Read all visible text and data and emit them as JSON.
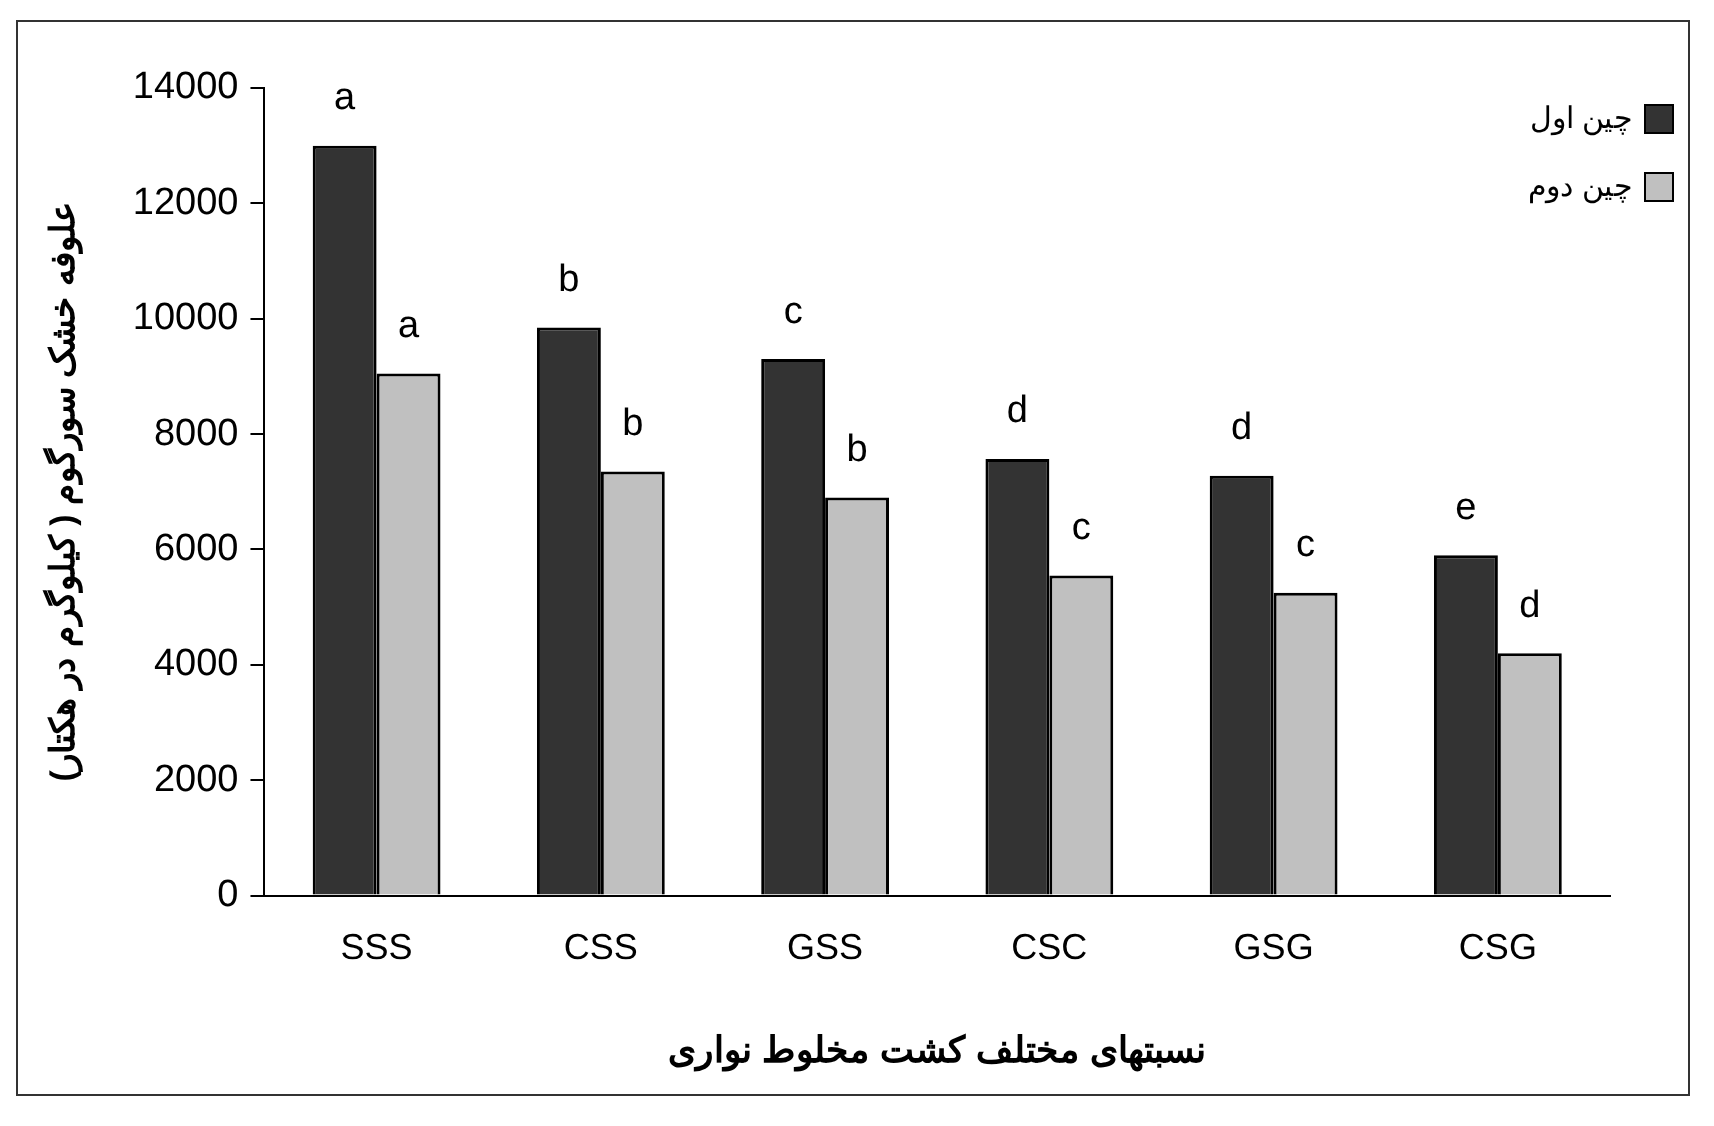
{
  "chart_data": {
    "type": "bar",
    "xlabel": "نسبتهای مختلف کشت مخلوط نواری",
    "ylabel": "علوفه خشک سورگوم ( کیلوگرم در هکتار)",
    "categories": [
      "SSS",
      "CSS",
      "GSS",
      "CSC",
      "GSG",
      "CSG"
    ],
    "series": [
      {
        "name": "چین اول",
        "color": "#333333",
        "values": [
          13000,
          9850,
          9300,
          7570,
          7280,
          5900
        ],
        "value_labels": [
          "a",
          "b",
          "c",
          "d",
          "d",
          "e"
        ]
      },
      {
        "name": "چین دوم",
        "color": "#c0c0c0",
        "values": [
          9050,
          7350,
          6900,
          5550,
          5250,
          4200
        ],
        "value_labels": [
          "a",
          "b",
          "b",
          "c",
          "c",
          "d"
        ]
      }
    ],
    "ylim": [
      0,
      14000
    ],
    "yticks": [
      0,
      2000,
      4000,
      6000,
      8000,
      10000,
      12000,
      14000
    ],
    "grid": false,
    "legend": "top right"
  }
}
